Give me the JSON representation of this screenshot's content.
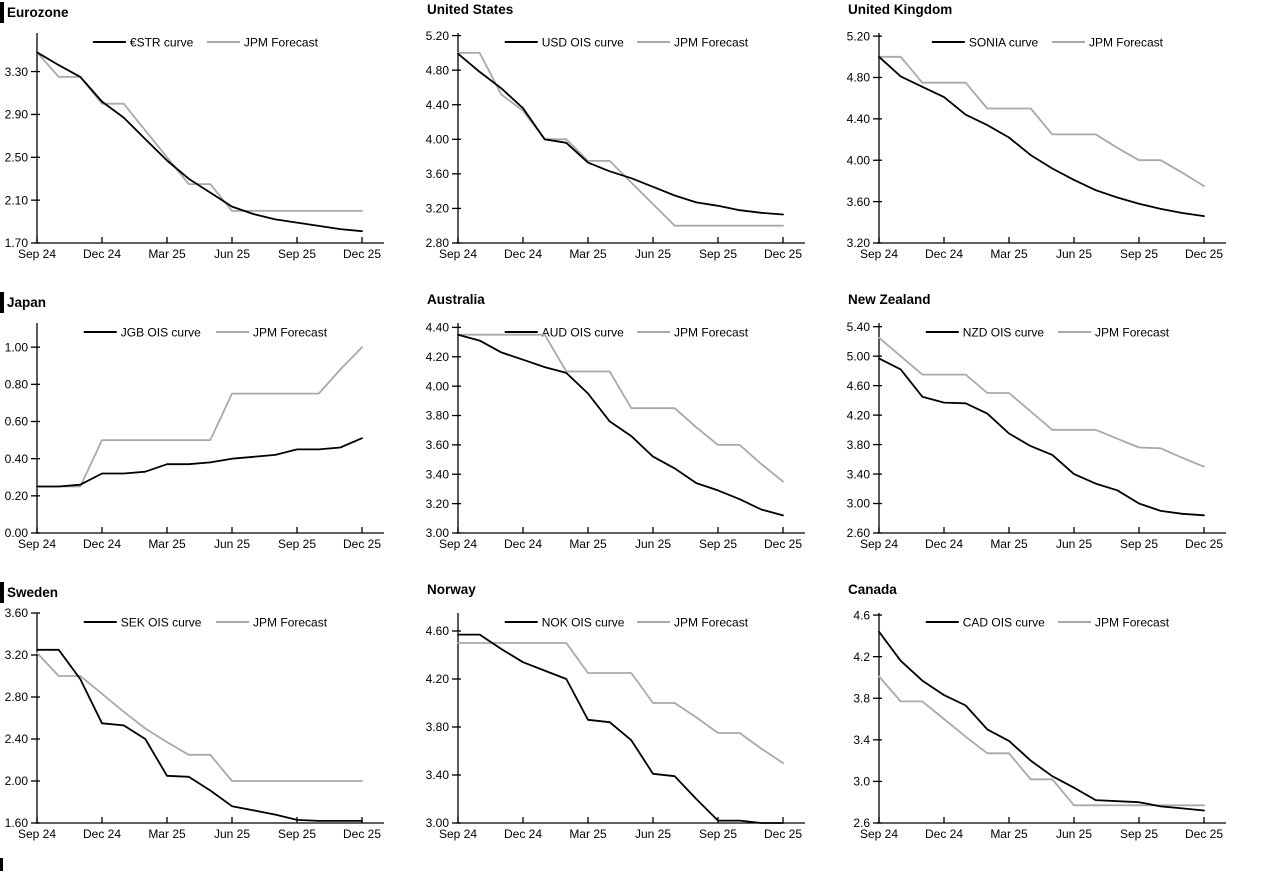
{
  "page": {
    "background": "#ffffff",
    "curve_black": "#000000",
    "forecast_gray": "#a9a9a9"
  },
  "chart_data": [
    {
      "type": "line",
      "title": "Eurozone",
      "legend_labels": [
        "€STR curve",
        "JPM Forecast"
      ],
      "y_tick_labels": [
        "1.70",
        "2.10",
        "2.50",
        "2.90",
        "3.30"
      ],
      "y_axis_range": [
        1.7,
        3.66
      ],
      "x_tick_labels": [
        "Sep 24",
        "Dec 24",
        "Mar 25",
        "Jun 25",
        "Sep 25",
        "Dec 25"
      ],
      "categories": [
        "Sep 24",
        "Oct 24",
        "Nov 24",
        "Dec 24",
        "Jan 25",
        "Feb 25",
        "Mar 25",
        "Apr 25",
        "May 25",
        "Jun 25",
        "Jul 25",
        "Aug 25",
        "Sep 25",
        "Oct 25",
        "Nov 25",
        "Dec 25"
      ],
      "series": [
        {
          "name": "€STR curve",
          "color": "#000000",
          "values": [
            3.48,
            3.36,
            3.25,
            3.02,
            2.87,
            2.67,
            2.47,
            2.3,
            2.17,
            2.04,
            1.97,
            1.92,
            1.89,
            1.86,
            1.83,
            1.81
          ]
        },
        {
          "name": "JPM Forecast",
          "color": "#a9a9a9",
          "values": [
            3.48,
            3.25,
            3.25,
            3.0,
            3.0,
            2.75,
            2.5,
            2.25,
            2.25,
            2.0,
            2.0,
            2.0,
            2.0,
            2.0,
            2.0,
            2.0
          ]
        }
      ]
    },
    {
      "type": "line",
      "title": "United States",
      "legend_labels": [
        "USD OIS curve",
        "JPM Forecast"
      ],
      "y_tick_labels": [
        "2.80",
        "3.20",
        "3.60",
        "4.00",
        "4.40",
        "4.80",
        "5.20"
      ],
      "y_axis_range": [
        2.8,
        5.23
      ],
      "x_tick_labels": [
        "Sep 24",
        "Dec 24",
        "Mar 25",
        "Jun 25",
        "Sep 25",
        "Dec 25"
      ],
      "categories": [
        "Sep 24",
        "Oct 24",
        "Nov 24",
        "Dec 24",
        "Jan 25",
        "Feb 25",
        "Mar 25",
        "Apr 25",
        "May 25",
        "Jun 25",
        "Jul 25",
        "Aug 25",
        "Sep 25",
        "Oct 25",
        "Nov 25",
        "Dec 25"
      ],
      "series": [
        {
          "name": "USD OIS curve",
          "color": "#000000",
          "values": [
            4.99,
            4.78,
            4.59,
            4.36,
            4.0,
            3.96,
            3.73,
            3.63,
            3.55,
            3.45,
            3.35,
            3.27,
            3.23,
            3.18,
            3.15,
            3.13
          ]
        },
        {
          "name": "JPM Forecast",
          "color": "#a9a9a9",
          "values": [
            5.0,
            5.0,
            4.52,
            4.33,
            4.0,
            4.0,
            3.75,
            3.75,
            3.5,
            3.25,
            3.0,
            3.0,
            3.0,
            3.0,
            3.0,
            3.0
          ]
        }
      ]
    },
    {
      "type": "line",
      "title": "United Kingdom",
      "legend_labels": [
        "SONIA curve",
        "JPM Forecast"
      ],
      "y_tick_labels": [
        "3.20",
        "3.60",
        "4.00",
        "4.40",
        "4.80",
        "5.20"
      ],
      "y_axis_range": [
        3.2,
        5.23
      ],
      "x_tick_labels": [
        "Sep 24",
        "Dec 24",
        "Mar 25",
        "Jun 25",
        "Sep 25",
        "Dec 25"
      ],
      "categories": [
        "Sep 24",
        "Oct 24",
        "Nov 24",
        "Dec 24",
        "Jan 25",
        "Feb 25",
        "Mar 25",
        "Apr 25",
        "May 25",
        "Jun 25",
        "Jul 25",
        "Aug 25",
        "Sep 25",
        "Oct 25",
        "Nov 25",
        "Dec 25"
      ],
      "series": [
        {
          "name": "SONIA curve",
          "color": "#000000",
          "values": [
            5.0,
            4.81,
            4.71,
            4.61,
            4.44,
            4.34,
            4.22,
            4.05,
            3.92,
            3.81,
            3.71,
            3.64,
            3.58,
            3.53,
            3.49,
            3.46
          ]
        },
        {
          "name": "JPM Forecast",
          "color": "#a9a9a9",
          "values": [
            5.0,
            5.0,
            4.75,
            4.75,
            4.75,
            4.5,
            4.5,
            4.5,
            4.25,
            4.25,
            4.25,
            4.12,
            4.0,
            4.0,
            3.88,
            3.75
          ]
        }
      ]
    },
    {
      "type": "line",
      "title": "Japan",
      "legend_labels": [
        "JGB OIS curve",
        "JPM Forecast"
      ],
      "y_tick_labels": [
        "0.00",
        "0.20",
        "0.40",
        "0.60",
        "0.80",
        "1.00"
      ],
      "y_axis_range": [
        0.0,
        1.13
      ],
      "x_tick_labels": [
        "Sep 24",
        "Dec 24",
        "Mar 25",
        "Jun 25",
        "Sep 25",
        "Dec 25"
      ],
      "categories": [
        "Sep 24",
        "Oct 24",
        "Nov 24",
        "Dec 24",
        "Jan 25",
        "Feb 25",
        "Mar 25",
        "Apr 25",
        "May 25",
        "Jun 25",
        "Jul 25",
        "Aug 25",
        "Sep 25",
        "Oct 25",
        "Nov 25",
        "Dec 25"
      ],
      "series": [
        {
          "name": "JGB OIS curve",
          "color": "#000000",
          "values": [
            0.25,
            0.25,
            0.26,
            0.32,
            0.32,
            0.33,
            0.37,
            0.37,
            0.38,
            0.4,
            0.41,
            0.42,
            0.45,
            0.45,
            0.46,
            0.51
          ]
        },
        {
          "name": "JPM Forecast",
          "color": "#a9a9a9",
          "values": [
            0.25,
            0.25,
            0.25,
            0.5,
            0.5,
            0.5,
            0.5,
            0.5,
            0.5,
            0.75,
            0.75,
            0.75,
            0.75,
            0.75,
            0.88,
            1.0
          ]
        }
      ]
    },
    {
      "type": "line",
      "title": "Australia",
      "legend_labels": [
        "AUD OIS curve",
        "JPM Forecast"
      ],
      "y_tick_labels": [
        "3.00",
        "3.20",
        "3.40",
        "3.60",
        "3.80",
        "4.00",
        "4.20",
        "4.40"
      ],
      "y_axis_range": [
        3.0,
        4.43
      ],
      "x_tick_labels": [
        "Sep 24",
        "Dec 24",
        "Mar 25",
        "Jun 25",
        "Sep 25",
        "Dec 25"
      ],
      "categories": [
        "Sep 24",
        "Oct 24",
        "Nov 24",
        "Dec 24",
        "Jan 25",
        "Feb 25",
        "Mar 25",
        "Apr 25",
        "May 25",
        "Jun 25",
        "Jul 25",
        "Aug 25",
        "Sep 25",
        "Oct 25",
        "Nov 25",
        "Dec 25"
      ],
      "series": [
        {
          "name": "AUD OIS curve",
          "color": "#000000",
          "values": [
            4.35,
            4.31,
            4.23,
            4.18,
            4.13,
            4.09,
            3.95,
            3.76,
            3.66,
            3.52,
            3.44,
            3.34,
            3.29,
            3.23,
            3.16,
            3.12
          ]
        },
        {
          "name": "JPM Forecast",
          "color": "#a9a9a9",
          "values": [
            4.35,
            4.35,
            4.35,
            4.35,
            4.35,
            4.1,
            4.1,
            4.1,
            3.85,
            3.85,
            3.85,
            3.72,
            3.6,
            3.6,
            3.47,
            3.35
          ]
        }
      ]
    },
    {
      "type": "line",
      "title": "New Zealand",
      "legend_labels": [
        "NZD OIS curve",
        "JPM Forecast"
      ],
      "y_tick_labels": [
        "2.60",
        "3.00",
        "3.40",
        "3.80",
        "4.20",
        "4.60",
        "5.00",
        "5.40"
      ],
      "y_axis_range": [
        2.6,
        5.45
      ],
      "x_tick_labels": [
        "Sep 24",
        "Dec 24",
        "Mar 25",
        "Jun 25",
        "Sep 25",
        "Dec 25"
      ],
      "categories": [
        "Sep 24",
        "Oct 24",
        "Nov 24",
        "Dec 24",
        "Jan 25",
        "Feb 25",
        "Mar 25",
        "Apr 25",
        "May 25",
        "Jun 25",
        "Jul 25",
        "Aug 25",
        "Sep 25",
        "Oct 25",
        "Nov 25",
        "Dec 25"
      ],
      "series": [
        {
          "name": "NZD OIS curve",
          "color": "#000000",
          "values": [
            4.97,
            4.82,
            4.45,
            4.37,
            4.36,
            4.22,
            3.95,
            3.78,
            3.66,
            3.4,
            3.27,
            3.18,
            3.0,
            2.9,
            2.86,
            2.84
          ]
        },
        {
          "name": "JPM Forecast",
          "color": "#a9a9a9",
          "values": [
            5.25,
            5.0,
            4.75,
            4.75,
            4.75,
            4.5,
            4.5,
            4.25,
            4.0,
            4.0,
            4.0,
            3.88,
            3.76,
            3.75,
            3.62,
            3.5
          ]
        }
      ]
    },
    {
      "type": "line",
      "title": "Sweden",
      "legend_labels": [
        "SEK OIS curve",
        "JPM Forecast"
      ],
      "y_tick_labels": [
        "1.60",
        "2.00",
        "2.40",
        "2.80",
        "3.20",
        "3.60"
      ],
      "y_axis_range": [
        1.6,
        3.6
      ],
      "x_tick_labels": [
        "Sep 24",
        "Dec 24",
        "Mar 25",
        "Jun 25",
        "Sep 25",
        "Dec 25"
      ],
      "categories": [
        "Sep 24",
        "Oct 24",
        "Nov 24",
        "Dec 24",
        "Jan 25",
        "Feb 25",
        "Mar 25",
        "Apr 25",
        "May 25",
        "Jun 25",
        "Jul 25",
        "Aug 25",
        "Sep 25",
        "Oct 25",
        "Nov 25",
        "Dec 25"
      ],
      "series": [
        {
          "name": "SEK OIS curve",
          "color": "#000000",
          "values": [
            3.25,
            3.25,
            2.97,
            2.55,
            2.53,
            2.4,
            2.05,
            2.04,
            1.91,
            1.76,
            1.72,
            1.68,
            1.63,
            1.62,
            1.62,
            1.62
          ]
        },
        {
          "name": "JPM Forecast",
          "color": "#a9a9a9",
          "values": [
            3.22,
            3.0,
            3.0,
            2.83,
            2.66,
            2.5,
            2.37,
            2.25,
            2.25,
            2.0,
            2.0,
            2.0,
            2.0,
            2.0,
            2.0,
            2.0
          ]
        }
      ]
    },
    {
      "type": "line",
      "title": "Norway",
      "legend_labels": [
        "NOK OIS curve",
        "JPM Forecast"
      ],
      "y_tick_labels": [
        "3.00",
        "3.40",
        "3.80",
        "4.20",
        "4.60"
      ],
      "y_axis_range": [
        3.0,
        4.75
      ],
      "x_tick_labels": [
        "Sep 24",
        "Dec 24",
        "Mar 25",
        "Jun 25",
        "Sep 25",
        "Dec 25"
      ],
      "categories": [
        "Sep 24",
        "Oct 24",
        "Nov 24",
        "Dec 24",
        "Jan 25",
        "Feb 25",
        "Mar 25",
        "Apr 25",
        "May 25",
        "Jun 25",
        "Jul 25",
        "Aug 25",
        "Sep 25",
        "Oct 25",
        "Nov 25",
        "Dec 25"
      ],
      "series": [
        {
          "name": "NOK OIS curve",
          "color": "#000000",
          "values": [
            4.57,
            4.57,
            4.45,
            4.34,
            4.27,
            4.2,
            3.86,
            3.84,
            3.69,
            3.41,
            3.39,
            3.2,
            3.02,
            3.02,
            3.0,
            3.0
          ]
        },
        {
          "name": "JPM Forecast",
          "color": "#a9a9a9",
          "values": [
            4.5,
            4.5,
            4.5,
            4.5,
            4.5,
            4.5,
            4.25,
            4.25,
            4.25,
            4.0,
            4.0,
            3.88,
            3.75,
            3.75,
            3.62,
            3.5
          ]
        }
      ]
    },
    {
      "type": "line",
      "title": "Canada",
      "legend_labels": [
        "CAD OIS curve",
        "JPM Forecast"
      ],
      "y_tick_labels": [
        "2.6",
        "3.0",
        "3.4",
        "3.8",
        "4.2",
        "4.6"
      ],
      "y_axis_range": [
        2.6,
        4.62
      ],
      "x_tick_labels": [
        "Sep 24",
        "Dec 24",
        "Mar 25",
        "Jun 25",
        "Sep 25",
        "Dec 25"
      ],
      "categories": [
        "Sep 24",
        "Oct 24",
        "Nov 24",
        "Dec 24",
        "Jan 25",
        "Feb 25",
        "Mar 25",
        "Apr 25",
        "May 25",
        "Jun 25",
        "Jul 25",
        "Aug 25",
        "Sep 25",
        "Oct 25",
        "Nov 25",
        "Dec 25"
      ],
      "series": [
        {
          "name": "CAD OIS curve",
          "color": "#000000",
          "values": [
            4.44,
            4.16,
            3.97,
            3.83,
            3.73,
            3.5,
            3.39,
            3.2,
            3.05,
            2.94,
            2.82,
            2.81,
            2.8,
            2.76,
            2.74,
            2.72
          ]
        },
        {
          "name": "JPM Forecast",
          "color": "#a9a9a9",
          "values": [
            4.01,
            3.77,
            3.77,
            3.6,
            3.43,
            3.27,
            3.27,
            3.02,
            3.02,
            2.77,
            2.77,
            2.77,
            2.77,
            2.77,
            2.77,
            2.77
          ]
        }
      ]
    }
  ]
}
